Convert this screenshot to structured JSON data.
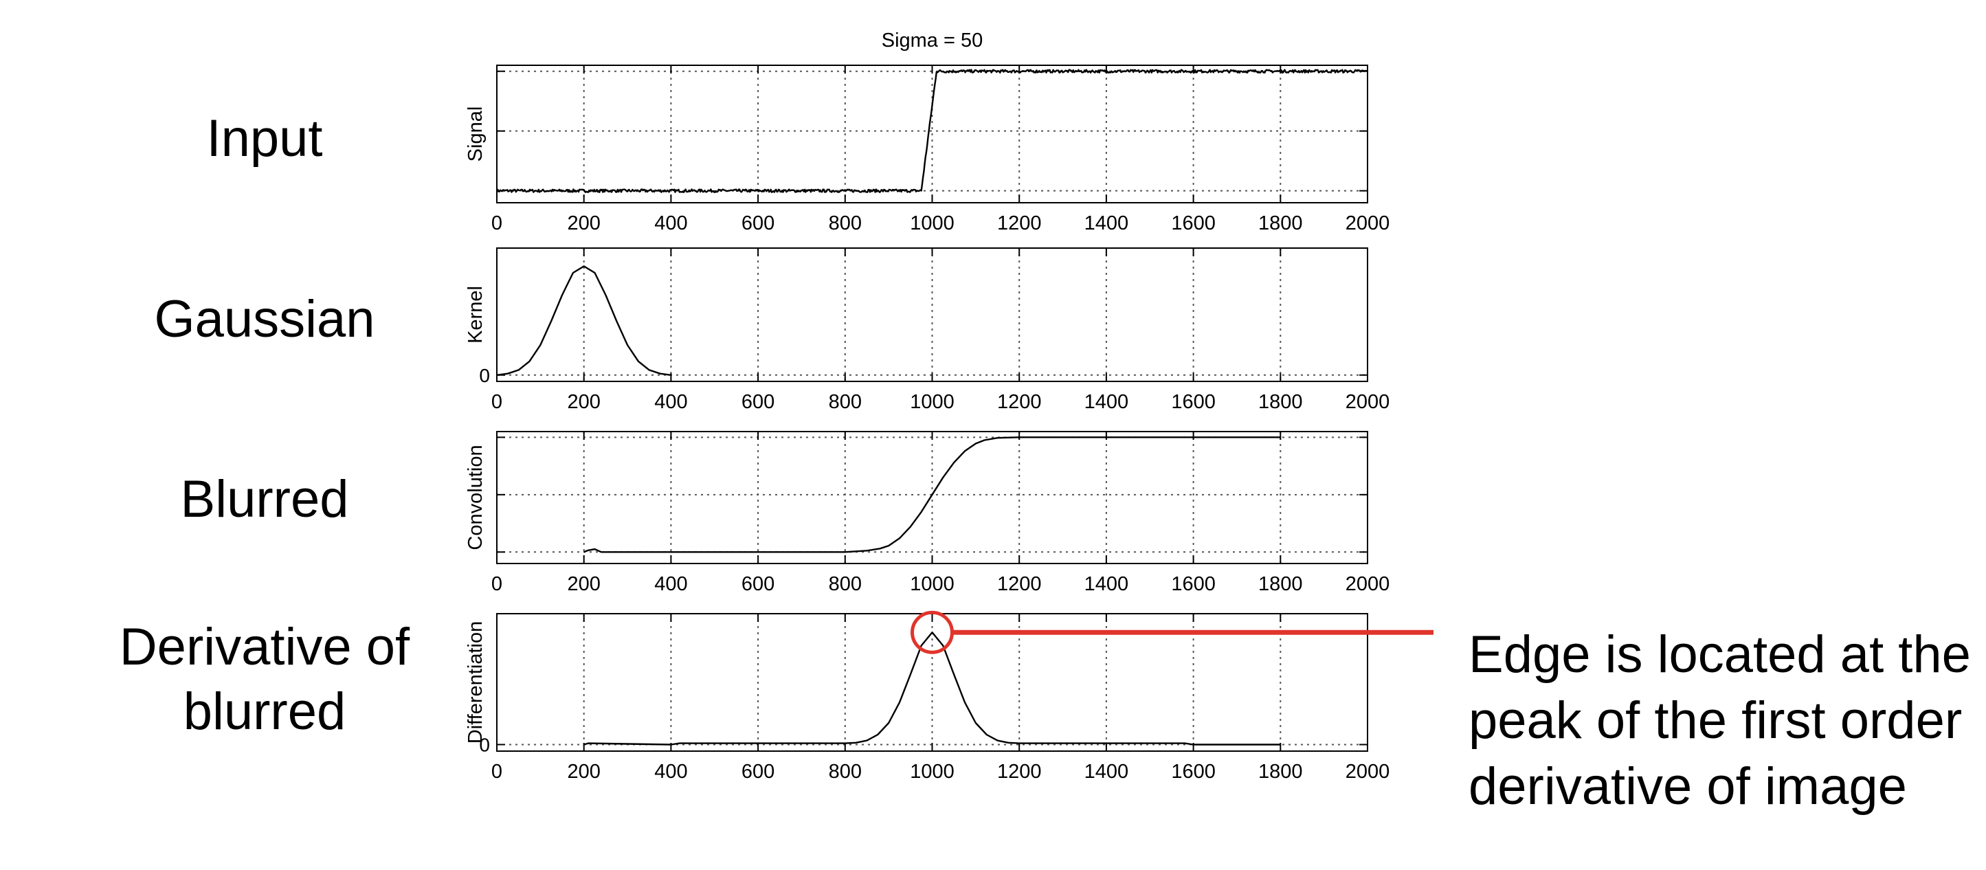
{
  "figure": {
    "title": "Sigma = 50",
    "row_labels": [
      "Input",
      "Gaussian",
      "Blurred",
      "Derivative of blurred"
    ],
    "annotation_lines": [
      "Edge is located at the",
      "peak of the first order",
      "derivative of image"
    ],
    "annotation_color": "#e0352b",
    "line_color": "#000000",
    "grid_color": "#555555"
  },
  "chart_data": [
    {
      "type": "line",
      "title": "Sigma = 50",
      "ylabel": "Signal",
      "xlim": [
        0,
        2000
      ],
      "x_ticks": [
        0,
        200,
        400,
        600,
        800,
        1000,
        1200,
        1400,
        1600,
        1800,
        2000
      ],
      "y_ticks": [
        0,
        0.5,
        1
      ],
      "y_tick_labels": [],
      "ylim": [
        -0.1,
        1.05
      ],
      "grid": true,
      "noise": 0.012,
      "series": [
        {
          "x": [
            0,
            975,
            1010,
            2000
          ],
          "y": [
            0,
            0,
            1,
            1
          ]
        }
      ]
    },
    {
      "type": "line",
      "ylabel": "Kernel",
      "xlim": [
        0,
        2000
      ],
      "x_ticks": [
        0,
        200,
        400,
        600,
        800,
        1000,
        1200,
        1400,
        1600,
        1800,
        2000
      ],
      "y_ticks": [
        0
      ],
      "y_tick_labels": [
        "0"
      ],
      "ylim": [
        -0.05,
        1.0
      ],
      "grid": true,
      "series": [
        {
          "x": [
            0,
            25,
            50,
            75,
            100,
            125,
            150,
            175,
            200,
            225,
            250,
            275,
            300,
            325,
            350,
            375,
            400
          ],
          "y": [
            0.0,
            0.011,
            0.04,
            0.108,
            0.237,
            0.426,
            0.63,
            0.805,
            0.857,
            0.805,
            0.63,
            0.426,
            0.237,
            0.108,
            0.04,
            0.011,
            0.0
          ]
        }
      ]
    },
    {
      "type": "line",
      "ylabel": "Convolution",
      "xlim": [
        0,
        2000
      ],
      "x_ticks": [
        0,
        200,
        400,
        600,
        800,
        1000,
        1200,
        1400,
        1600,
        1800,
        2000
      ],
      "y_ticks": [
        0,
        0.5,
        1
      ],
      "y_tick_labels": [],
      "ylim": [
        -0.1,
        1.05
      ],
      "grid": true,
      "series": [
        {
          "x": [
            200,
            210,
            225,
            240,
            400,
            800,
            850,
            880,
            900,
            925,
            950,
            975,
            1000,
            1025,
            1050,
            1075,
            1100,
            1120,
            1150,
            1200,
            1800
          ],
          "y": [
            0.0,
            0.015,
            0.025,
            0.0,
            0.0,
            0.0,
            0.012,
            0.03,
            0.055,
            0.12,
            0.22,
            0.35,
            0.5,
            0.65,
            0.78,
            0.88,
            0.945,
            0.975,
            0.995,
            1.0,
            1.0
          ]
        }
      ]
    },
    {
      "type": "line",
      "ylabel": "Differentiation",
      "xlim": [
        0,
        2000
      ],
      "x_ticks": [
        0,
        200,
        400,
        600,
        800,
        1000,
        1200,
        1400,
        1600,
        1800,
        2000
      ],
      "y_ticks": [
        0
      ],
      "y_tick_labels": [
        "0"
      ],
      "ylim": [
        -0.05,
        1.0
      ],
      "grid": true,
      "series": [
        {
          "x": [
            200,
            210,
            400,
            420,
            800,
            825,
            850,
            875,
            900,
            925,
            950,
            975,
            1000,
            1025,
            1050,
            1075,
            1100,
            1125,
            1150,
            1175,
            1200,
            1580,
            1600,
            1800
          ],
          "y": [
            0.0,
            0.01,
            0.0,
            0.01,
            0.01,
            0.014,
            0.031,
            0.076,
            0.165,
            0.322,
            0.535,
            0.756,
            0.857,
            0.756,
            0.535,
            0.322,
            0.165,
            0.076,
            0.031,
            0.014,
            0.01,
            0.01,
            0.0,
            0.0
          ]
        }
      ]
    }
  ]
}
